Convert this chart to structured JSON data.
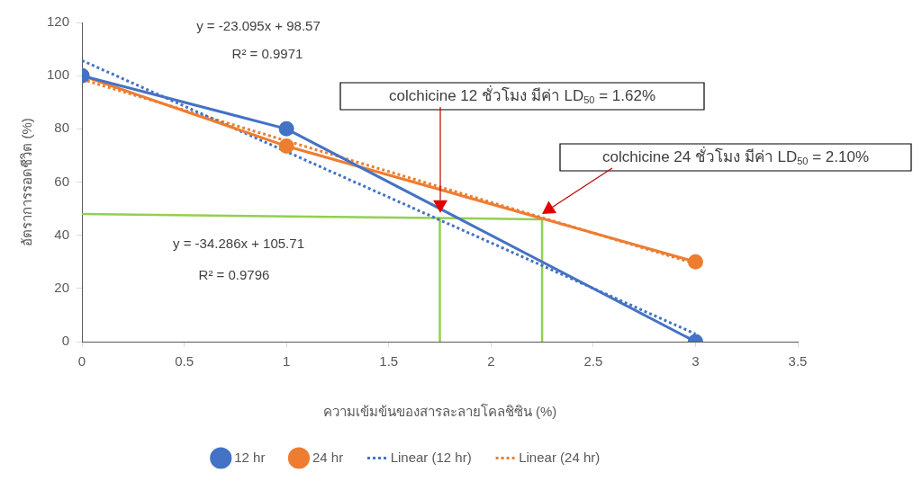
{
  "chart_data": {
    "type": "line",
    "xlabel": "ความเข้มข้นของสารละลายโคลชิซิน (%)",
    "ylabel": "อัตราการรอดชีวิต (%)",
    "x": [
      0,
      1,
      3
    ],
    "xlim": [
      0,
      3.5
    ],
    "xticks": [
      0,
      0.5,
      1,
      1.5,
      2,
      2.5,
      3,
      3.5
    ],
    "ylim": [
      0,
      120
    ],
    "yticks": [
      0,
      20,
      40,
      60,
      80,
      100,
      120
    ],
    "grid": false,
    "legend": "bottom",
    "marker": "circle",
    "line_style": "solid",
    "series": [
      {
        "name": "12 hr",
        "color": "#4472c4",
        "values": [
          100,
          80,
          0
        ]
      },
      {
        "name": "24 hr",
        "color": "#ed7d31",
        "values": [
          100,
          73.5,
          30
        ]
      },
      {
        "name": "Linear (12 hr)",
        "type": "line",
        "color": "#4472c4",
        "marker": "none",
        "line_style": "dotted",
        "x": [
          0,
          3
        ],
        "values": [
          105.7,
          2.9
        ]
      },
      {
        "name": "Linear (24 hr)",
        "type": "line",
        "color": "#ed7d31",
        "marker": "none",
        "line_style": "dotted",
        "x": [
          0,
          3
        ],
        "values": [
          98.6,
          29.3
        ]
      },
      {
        "type": "line",
        "color": "#92d050",
        "marker": "none",
        "x": [
          0,
          2.25,
          2.25
        ],
        "values": [
          48,
          46,
          0
        ]
      },
      {
        "type": "line",
        "color": "#92d050",
        "marker": "none",
        "x": [
          1.75,
          1.75
        ],
        "values": [
          46.4,
          0
        ]
      }
    ],
    "annotations": [
      "y = -23.095x + 98.57",
      "R² = 0.9971",
      "y = -34.286x + 105.71",
      "R² = 0.9796",
      "colchicine 12 ชั่วโมง มีค่า LD$_{50}$ = 1.62%",
      "colchicine 24 ชั่วโมง มีค่า LD$_{50}$ = 2.10%"
    ]
  }
}
